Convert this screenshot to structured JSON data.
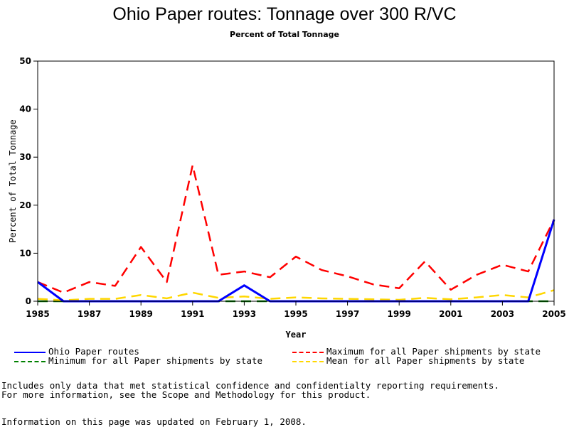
{
  "chart_data": {
    "type": "line",
    "title": "Ohio Paper routes: Tonnage over 300 R/VC",
    "subtitle": "Percent of Total Tonnage",
    "xlabel": "Year",
    "ylabel": "Percent of Total Tonnage",
    "x": [
      1985,
      1986,
      1987,
      1988,
      1989,
      1990,
      1991,
      1992,
      1993,
      1994,
      1995,
      1996,
      1997,
      1998,
      1999,
      2000,
      2001,
      2002,
      2003,
      2004,
      2005
    ],
    "xlim": [
      1985,
      2005
    ],
    "ylim": [
      0,
      50
    ],
    "xticks": [
      "1985",
      "1987",
      "1989",
      "1991",
      "1993",
      "1995",
      "1997",
      "1999",
      "2001",
      "2003",
      "2005"
    ],
    "yticks": [
      "0",
      "10",
      "20",
      "30",
      "40",
      "50"
    ],
    "grid": false,
    "legend_position": "bottom",
    "series": [
      {
        "name": "Ohio Paper routes",
        "color": "#0000ff",
        "dash": "solid",
        "values": [
          4,
          0,
          0,
          0,
          0,
          0,
          0,
          0,
          3.3,
          0,
          0,
          0,
          0,
          0,
          0,
          0,
          0,
          0,
          0,
          0,
          17
        ]
      },
      {
        "name": "Maximum for all Paper shipments by state",
        "color": "#ff0000",
        "dash": "dashed",
        "values": [
          4,
          1.8,
          4,
          3.2,
          11.3,
          4,
          28.3,
          5.5,
          6.2,
          5,
          9.3,
          6.5,
          5.2,
          3.5,
          2.7,
          8.3,
          2.4,
          5.5,
          7.6,
          6.2,
          17
        ]
      },
      {
        "name": "Minimum for all Paper shipments by state",
        "color": "#008000",
        "dash": "dashed",
        "values": [
          0,
          0,
          0,
          0,
          0,
          0,
          0,
          0,
          0,
          0,
          0,
          0,
          0,
          0,
          0,
          0,
          0,
          0,
          0,
          0,
          0
        ]
      },
      {
        "name": "Mean for all Paper shipments by state",
        "color": "#ffd700",
        "dash": "dashed",
        "values": [
          0.5,
          0.2,
          0.5,
          0.5,
          1.3,
          0.6,
          1.8,
          0.7,
          1,
          0.5,
          0.8,
          0.6,
          0.5,
          0.4,
          0.3,
          0.7,
          0.4,
          0.8,
          1.3,
          0.8,
          2.3
        ]
      }
    ]
  },
  "notes": {
    "line1": "Includes only data that met statistical confidence and confidentialty reporting requirements.",
    "line2": "For more information, see the Scope and Methodology for this product.",
    "line3": "Information on this page was updated on February 1, 2008."
  }
}
